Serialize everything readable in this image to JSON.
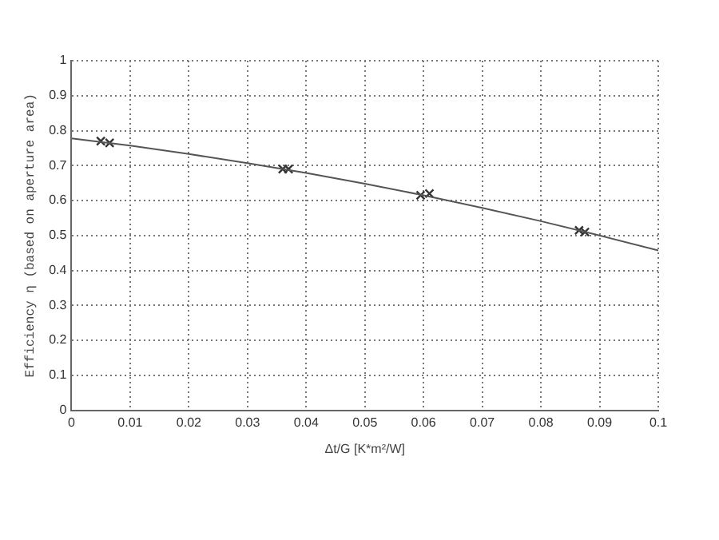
{
  "chart_data": {
    "type": "line",
    "xlabel": "Δt/G [K*m²/W]",
    "ylabel": "Efficiency η (based on aperture area)",
    "xlim": [
      0,
      0.1
    ],
    "ylim": [
      0,
      1
    ],
    "xticks": [
      0,
      0.01,
      0.02,
      0.03,
      0.04,
      0.05,
      0.06,
      0.07,
      0.08,
      0.09,
      0.1
    ],
    "yticks": [
      0,
      0.1,
      0.2,
      0.3,
      0.4,
      0.5,
      0.6,
      0.7,
      0.8,
      0.9,
      1
    ],
    "grid": true,
    "legend": false,
    "series": [
      {
        "type": "line",
        "color": "#555555",
        "marker": "none",
        "x": [
          0,
          0.01,
          0.02,
          0.03,
          0.04,
          0.05,
          0.06,
          0.07,
          0.08,
          0.09,
          0.1
        ],
        "values": [
          0.778,
          0.757,
          0.733,
          0.707,
          0.679,
          0.648,
          0.615,
          0.579,
          0.541,
          0.5,
          0.457
        ]
      },
      {
        "type": "scatter",
        "color": "#333333",
        "marker": "cross",
        "x": [
          0.005,
          0.0065,
          0.036,
          0.037,
          0.0595,
          0.061,
          0.0865,
          0.0875
        ],
        "values": [
          0.77,
          0.765,
          0.69,
          0.69,
          0.615,
          0.62,
          0.515,
          0.51
        ]
      }
    ]
  }
}
